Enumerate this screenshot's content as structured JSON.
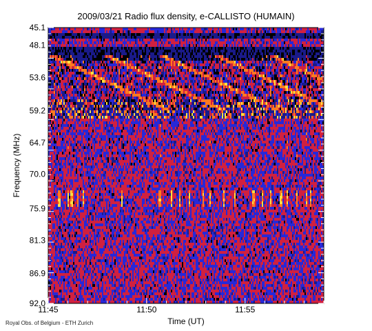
{
  "chart_data": {
    "type": "heatmap",
    "title": "2009/03/21  Radio flux density, e-CALLISTO (HUMAIN)",
    "xlabel": "Time (UT)",
    "ylabel": "Frequency (MHz)",
    "x_range": [
      "11:45",
      "11:59"
    ],
    "y_range": [
      45.1,
      92.0
    ],
    "y_inverted": true,
    "x_ticks": [
      "11:45",
      "11:50",
      "11:55"
    ],
    "y_ticks": [
      "45.1",
      "48.1",
      "53.6",
      "59.2",
      "64.7",
      "70.0",
      "75.9",
      "81.3",
      "86.9",
      "92.0"
    ],
    "colormap": [
      "#000000",
      "#1a1a8a",
      "#2828d8",
      "#d02040",
      "#ff7a20",
      "#ffe040"
    ],
    "features": [
      {
        "name": "intense emission band",
        "freq_mhz": [
          57.5,
          60.5
        ],
        "intensity": "high"
      },
      {
        "name": "drifting structures",
        "freq_mhz": [
          50.0,
          59.0
        ],
        "intensity": "medium"
      },
      {
        "name": "dark band",
        "freq_mhz": [
          48.5,
          50.5
        ],
        "intensity": "low"
      },
      {
        "name": "isolated spikes",
        "freq_mhz": [
          73.0,
          75.5
        ],
        "intensity": "medium"
      }
    ]
  },
  "credit": "Royal Obs. of Belgium - ETH Zurich"
}
